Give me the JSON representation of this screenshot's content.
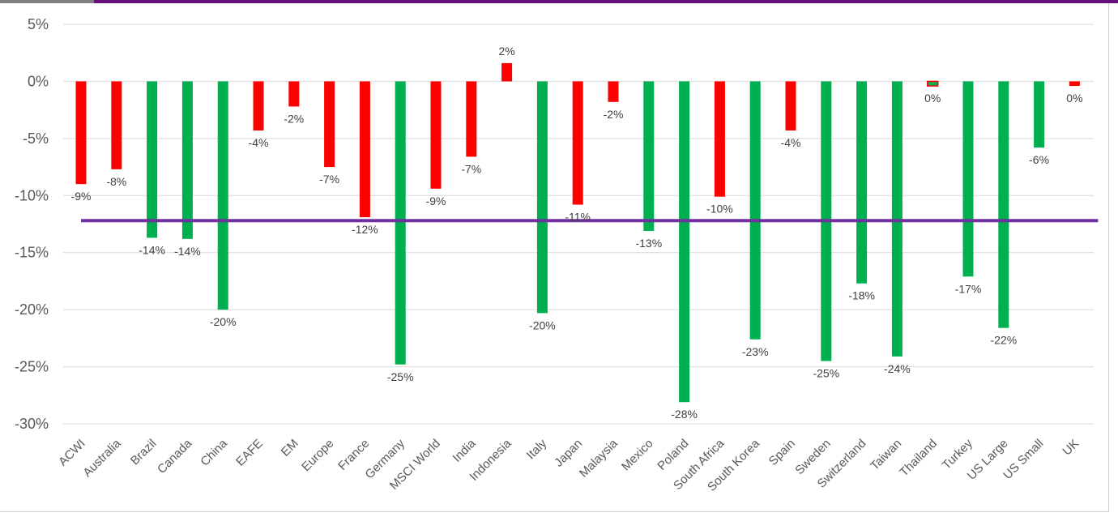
{
  "chart_data": {
    "type": "bar",
    "title": "",
    "xlabel": "",
    "ylabel": "",
    "ylim": [
      -30,
      5
    ],
    "yticks": [
      5,
      0,
      -5,
      -10,
      -15,
      -20,
      -25,
      -30
    ],
    "ytick_labels": [
      "5%",
      "0%",
      "-5%",
      "-10%",
      "-15%",
      "-20%",
      "-25%",
      "-30%"
    ],
    "grid": true,
    "legend": "none",
    "categories": [
      "ACWI",
      "Australia",
      "Brazil",
      "Canada",
      "China",
      "EAFE",
      "EM",
      "Europe",
      "France",
      "Germany",
      "MSCI World",
      "India",
      "Indonesia",
      "Italy",
      "Japan",
      "Malaysia",
      "Mexico",
      "Poland",
      "South Africa",
      "South Korea",
      "Spain",
      "Sweden",
      "Switzerland",
      "Taiwan",
      "Thailand",
      "Turkey",
      "US Large",
      "US Small",
      "UK"
    ],
    "values": [
      -9.0,
      -7.7,
      -13.7,
      -13.8,
      -20.0,
      -4.3,
      -2.2,
      -7.5,
      -11.9,
      -24.8,
      -9.4,
      -6.6,
      1.6,
      -20.3,
      -10.8,
      -1.8,
      -13.1,
      -28.1,
      -10.1,
      -22.6,
      -4.3,
      -24.5,
      -17.7,
      -24.1,
      -0.4,
      -17.1,
      -21.6,
      -5.8,
      -0.4
    ],
    "data_labels": [
      "-9%",
      "-8%",
      "-14%",
      "-14%",
      "-20%",
      "-4%",
      "-2%",
      "-7%",
      "-12%",
      "-25%",
      "-9%",
      "-7%",
      "2%",
      "-20%",
      "-11%",
      "-2%",
      "-13%",
      "-28%",
      "-10%",
      "-23%",
      "-4%",
      "-25%",
      "-18%",
      "-24%",
      "0%",
      "-17%",
      "-22%",
      "-6%",
      "0%"
    ],
    "bar_colors": [
      "red",
      "red",
      "green",
      "green",
      "green",
      "red",
      "red",
      "red",
      "red",
      "green",
      "red",
      "red",
      "red",
      "green",
      "red",
      "red",
      "green",
      "green",
      "red",
      "green",
      "red",
      "green",
      "green",
      "green",
      "mixed",
      "green",
      "green",
      "green",
      "red"
    ],
    "reference_line": {
      "value": -12.2,
      "color": "#7030a0"
    },
    "colors": {
      "red": "#ff0000",
      "green": "#00b050",
      "mixed": "#00b050",
      "mixed_border": "#ff0000",
      "grid": "#d9d9d9",
      "text": "#595959"
    }
  }
}
